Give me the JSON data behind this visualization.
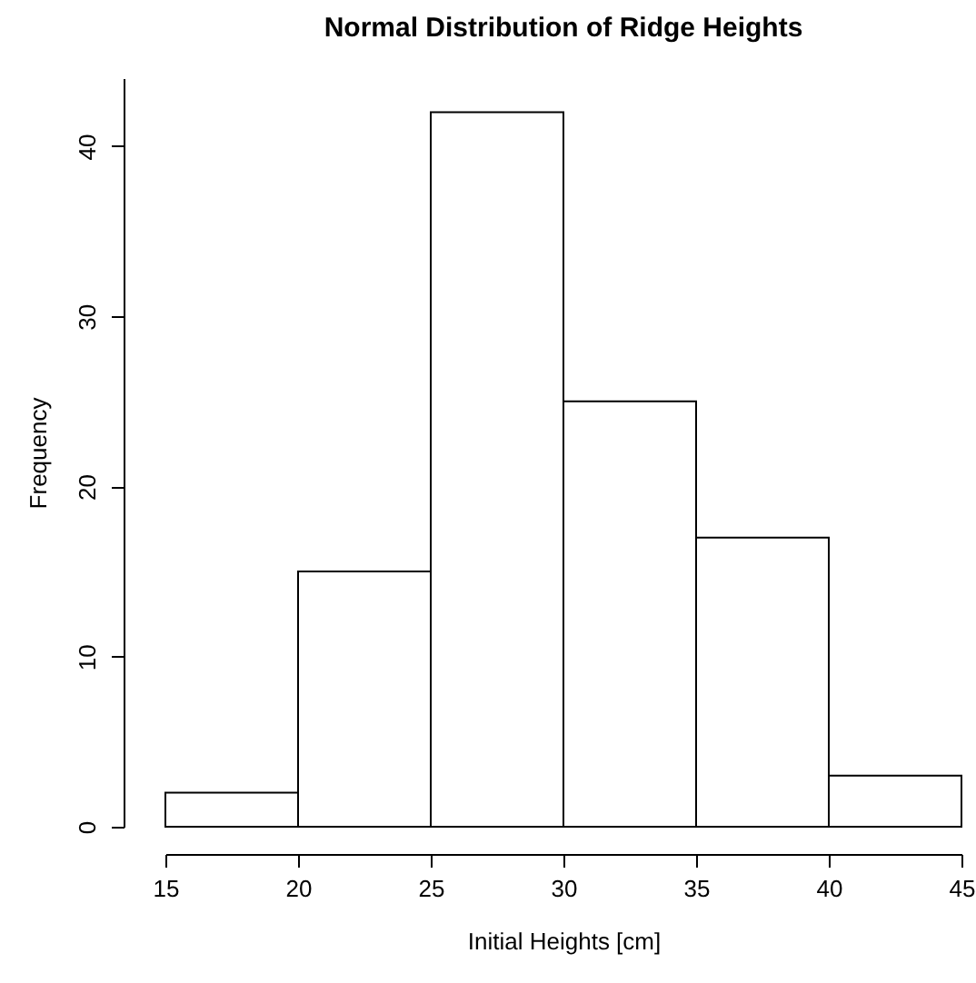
{
  "chart_data": {
    "type": "histogram",
    "title": "Normal Distribution of Ridge Heights",
    "xlabel": "Initial Heights [cm]",
    "ylabel": "Frequency",
    "bins": [
      15,
      20,
      25,
      30,
      35,
      40,
      45
    ],
    "values": [
      2,
      15,
      42,
      25,
      17,
      3
    ],
    "color": "#ffffff",
    "xlim": [
      15,
      45
    ],
    "xticks": [
      15,
      20,
      25,
      30,
      35,
      40,
      45
    ],
    "ylim": [
      0,
      44
    ],
    "yticks": [
      0,
      10,
      20,
      30,
      40
    ]
  }
}
